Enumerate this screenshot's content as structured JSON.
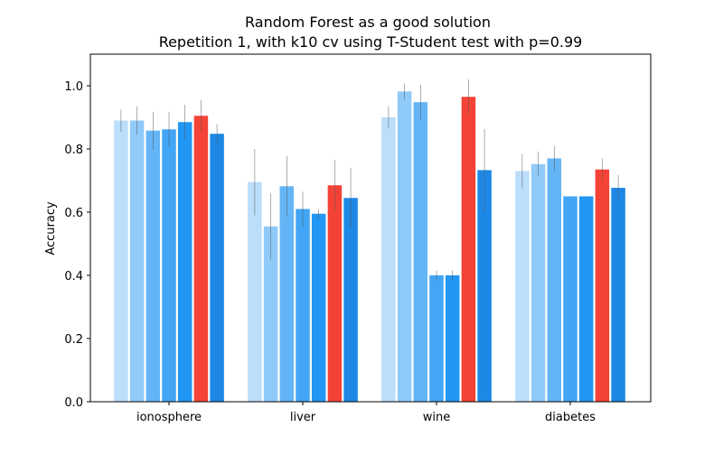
{
  "chart_data": {
    "type": "bar",
    "title": "Random Forest as a good solution",
    "subtitle": "Repetition 1, with k10 cv using T-Student test with p=0.99",
    "xlabel": "",
    "ylabel": "Accuracy",
    "ylim": [
      0,
      1.1
    ],
    "yticks": [
      "0.0",
      "0.2",
      "0.4",
      "0.6",
      "0.8",
      "1.0"
    ],
    "grid": false,
    "legend": "none",
    "categories": [
      "ionosphere",
      "liver",
      "wine",
      "diabetes"
    ],
    "series": [
      {
        "color": "#bbdefb",
        "values": [
          0.89,
          0.695,
          0.9,
          0.73
        ],
        "errors": [
          0.035,
          0.105,
          0.035,
          0.055
        ]
      },
      {
        "color": "#90caf9",
        "values": [
          0.89,
          0.555,
          0.982,
          0.752
        ],
        "errors": [
          0.045,
          0.105,
          0.025,
          0.04
        ]
      },
      {
        "color": "#64b5f6",
        "values": [
          0.858,
          0.682,
          0.948,
          0.77
        ],
        "errors": [
          0.06,
          0.095,
          0.055,
          0.04
        ]
      },
      {
        "color": "#42a5f5",
        "values": [
          0.862,
          0.61,
          0.4,
          0.65
        ],
        "errors": [
          0.055,
          0.055,
          0.015,
          0.0
        ]
      },
      {
        "color": "#2196f3",
        "values": [
          0.885,
          0.595,
          0.4,
          0.65
        ],
        "errors": [
          0.055,
          0.015,
          0.015,
          0.0
        ]
      },
      {
        "color": "#f44336",
        "values": [
          0.905,
          0.685,
          0.965,
          0.735
        ],
        "errors": [
          0.05,
          0.08,
          0.055,
          0.035
        ]
      },
      {
        "color": "#1e88e5",
        "values": [
          0.848,
          0.645,
          0.733,
          0.677
        ],
        "errors": [
          0.03,
          0.095,
          0.13,
          0.04
        ]
      }
    ]
  }
}
